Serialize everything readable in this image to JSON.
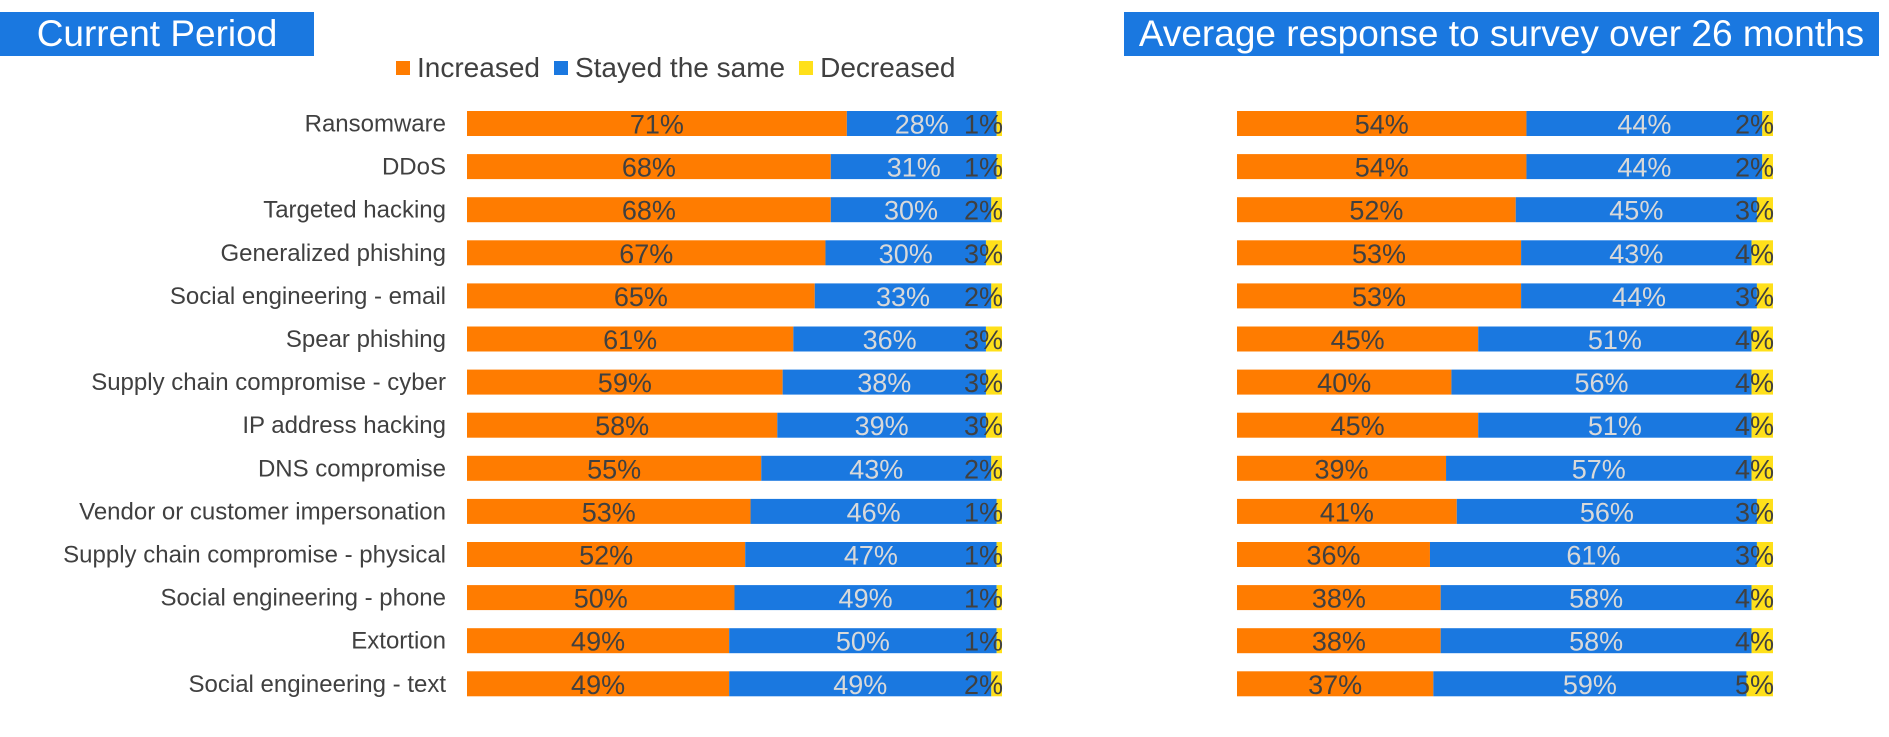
{
  "titles": {
    "left": "Current Period",
    "right": "Average response to survey over 26 months"
  },
  "legend": [
    {
      "label": "Increased",
      "color": "#ff7c00"
    },
    {
      "label": "Stayed the same",
      "color": "#1a78e0"
    },
    {
      "label": "Decreased",
      "color": "#ffe01a"
    }
  ],
  "chart_data": [
    {
      "type": "bar",
      "orientation": "horizontal",
      "stacked": "percent",
      "title": "Current Period",
      "categories": [
        "Ransomware",
        "DDoS",
        "Targeted hacking",
        "Generalized phishing",
        "Social engineering - email",
        "Spear phishing",
        "Supply chain compromise - cyber",
        "IP address hacking",
        "DNS compromise",
        "Vendor or customer impersonation",
        "Supply chain compromise - physical",
        "Social engineering - phone",
        "Extortion",
        "Social engineering - text"
      ],
      "series": [
        {
          "name": "Increased",
          "color": "#ff7c00",
          "values": [
            71,
            68,
            68,
            67,
            65,
            61,
            59,
            58,
            55,
            53,
            52,
            50,
            49,
            49
          ]
        },
        {
          "name": "Stayed the same",
          "color": "#1a78e0",
          "values": [
            28,
            31,
            30,
            30,
            33,
            36,
            38,
            39,
            43,
            46,
            47,
            49,
            50,
            49
          ]
        },
        {
          "name": "Decreased",
          "color": "#ffe01a",
          "values": [
            1,
            1,
            2,
            3,
            2,
            3,
            3,
            3,
            2,
            1,
            1,
            1,
            1,
            2
          ]
        }
      ],
      "value_format": "percent",
      "legend_position": "top",
      "grid": false
    },
    {
      "type": "bar",
      "orientation": "horizontal",
      "stacked": "percent",
      "title": "Average response to survey over 26 months",
      "categories": [
        "Ransomware",
        "DDoS",
        "Targeted hacking",
        "Generalized phishing",
        "Social engineering - email",
        "Spear phishing",
        "Supply chain compromise - cyber",
        "IP address hacking",
        "DNS compromise",
        "Vendor or customer impersonation",
        "Supply chain compromise - physical",
        "Social engineering - phone",
        "Extortion",
        "Social engineering - text"
      ],
      "series": [
        {
          "name": "Increased",
          "color": "#ff7c00",
          "values": [
            54,
            54,
            52,
            53,
            53,
            45,
            40,
            45,
            39,
            41,
            36,
            38,
            38,
            37
          ]
        },
        {
          "name": "Stayed the same",
          "color": "#1a78e0",
          "values": [
            44,
            44,
            45,
            43,
            44,
            51,
            56,
            51,
            57,
            56,
            61,
            58,
            58,
            59
          ]
        },
        {
          "name": "Decreased",
          "color": "#ffe01a",
          "values": [
            2,
            2,
            3,
            4,
            3,
            4,
            4,
            4,
            4,
            3,
            3,
            4,
            4,
            5
          ]
        }
      ],
      "value_format": "percent",
      "legend_position": "none",
      "grid": false
    }
  ]
}
